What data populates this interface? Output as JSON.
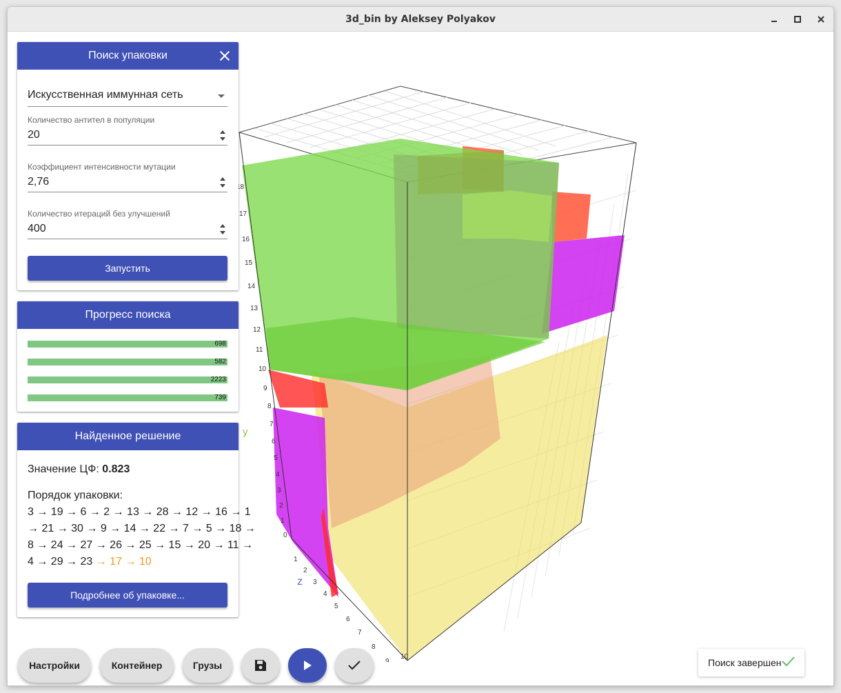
{
  "window": {
    "title": "3d_bin by Aleksey Polyakov"
  },
  "search_panel": {
    "title": "Поиск упаковки",
    "algorithm": "Искусственная иммунная сеть",
    "fields": [
      {
        "label": "Количество антител в популяции",
        "value": "20"
      },
      {
        "label": "Коэффициент интенсивности мутации",
        "value": "2,76"
      },
      {
        "label": "Количество итераций без улучшений",
        "value": "400"
      }
    ],
    "run_label": "Запустить"
  },
  "progress_panel": {
    "title": "Прогресс поиска",
    "bars": [
      {
        "value": "698",
        "fraction": 1.0
      },
      {
        "value": "582",
        "fraction": 1.0
      },
      {
        "value": "2223",
        "fraction": 1.0
      },
      {
        "value": "739",
        "fraction": 1.0
      }
    ]
  },
  "solution_panel": {
    "title": "Найденное решение",
    "objective_label": "Значение ЦФ:",
    "objective_value": "0.823",
    "order_label": "Порядок упаковки:",
    "order_lines": [
      "3 → 19 → 6 → 2 → 13 → 28 → 12 → 16 → 1",
      "→ 21 → 30 → 9 → 14 → 22 → 7 → 5 → 18 →",
      "8 → 24 → 27 → 26 → 25 → 15 → 20 → 11 →",
      "4 → 29 → 23"
    ],
    "order_tail": " → 17 → 10",
    "details_label": "Подробнее об упаковке..."
  },
  "bottom_bar": {
    "settings": "Настройки",
    "container": "Контейнер",
    "cargo": "Грузы"
  },
  "toast": {
    "text": "Поиск завершен"
  },
  "plot": {
    "axis_y_label": "y",
    "axis_z_label": "z",
    "y_ticks": [
      "0",
      "1",
      "2",
      "3",
      "4",
      "5",
      "6",
      "7",
      "8",
      "9",
      "10",
      "11",
      "12",
      "13",
      "14",
      "15",
      "16",
      "17",
      "18",
      "19"
    ],
    "z_ticks": [
      "1",
      "2",
      "3",
      "4",
      "5",
      "6",
      "7",
      "8",
      "9",
      "10"
    ]
  },
  "colors": {
    "primary": "#3f51b5",
    "progress": "#81c784",
    "accent_orange": "#f29b1c",
    "check_green": "#66bb6a"
  }
}
